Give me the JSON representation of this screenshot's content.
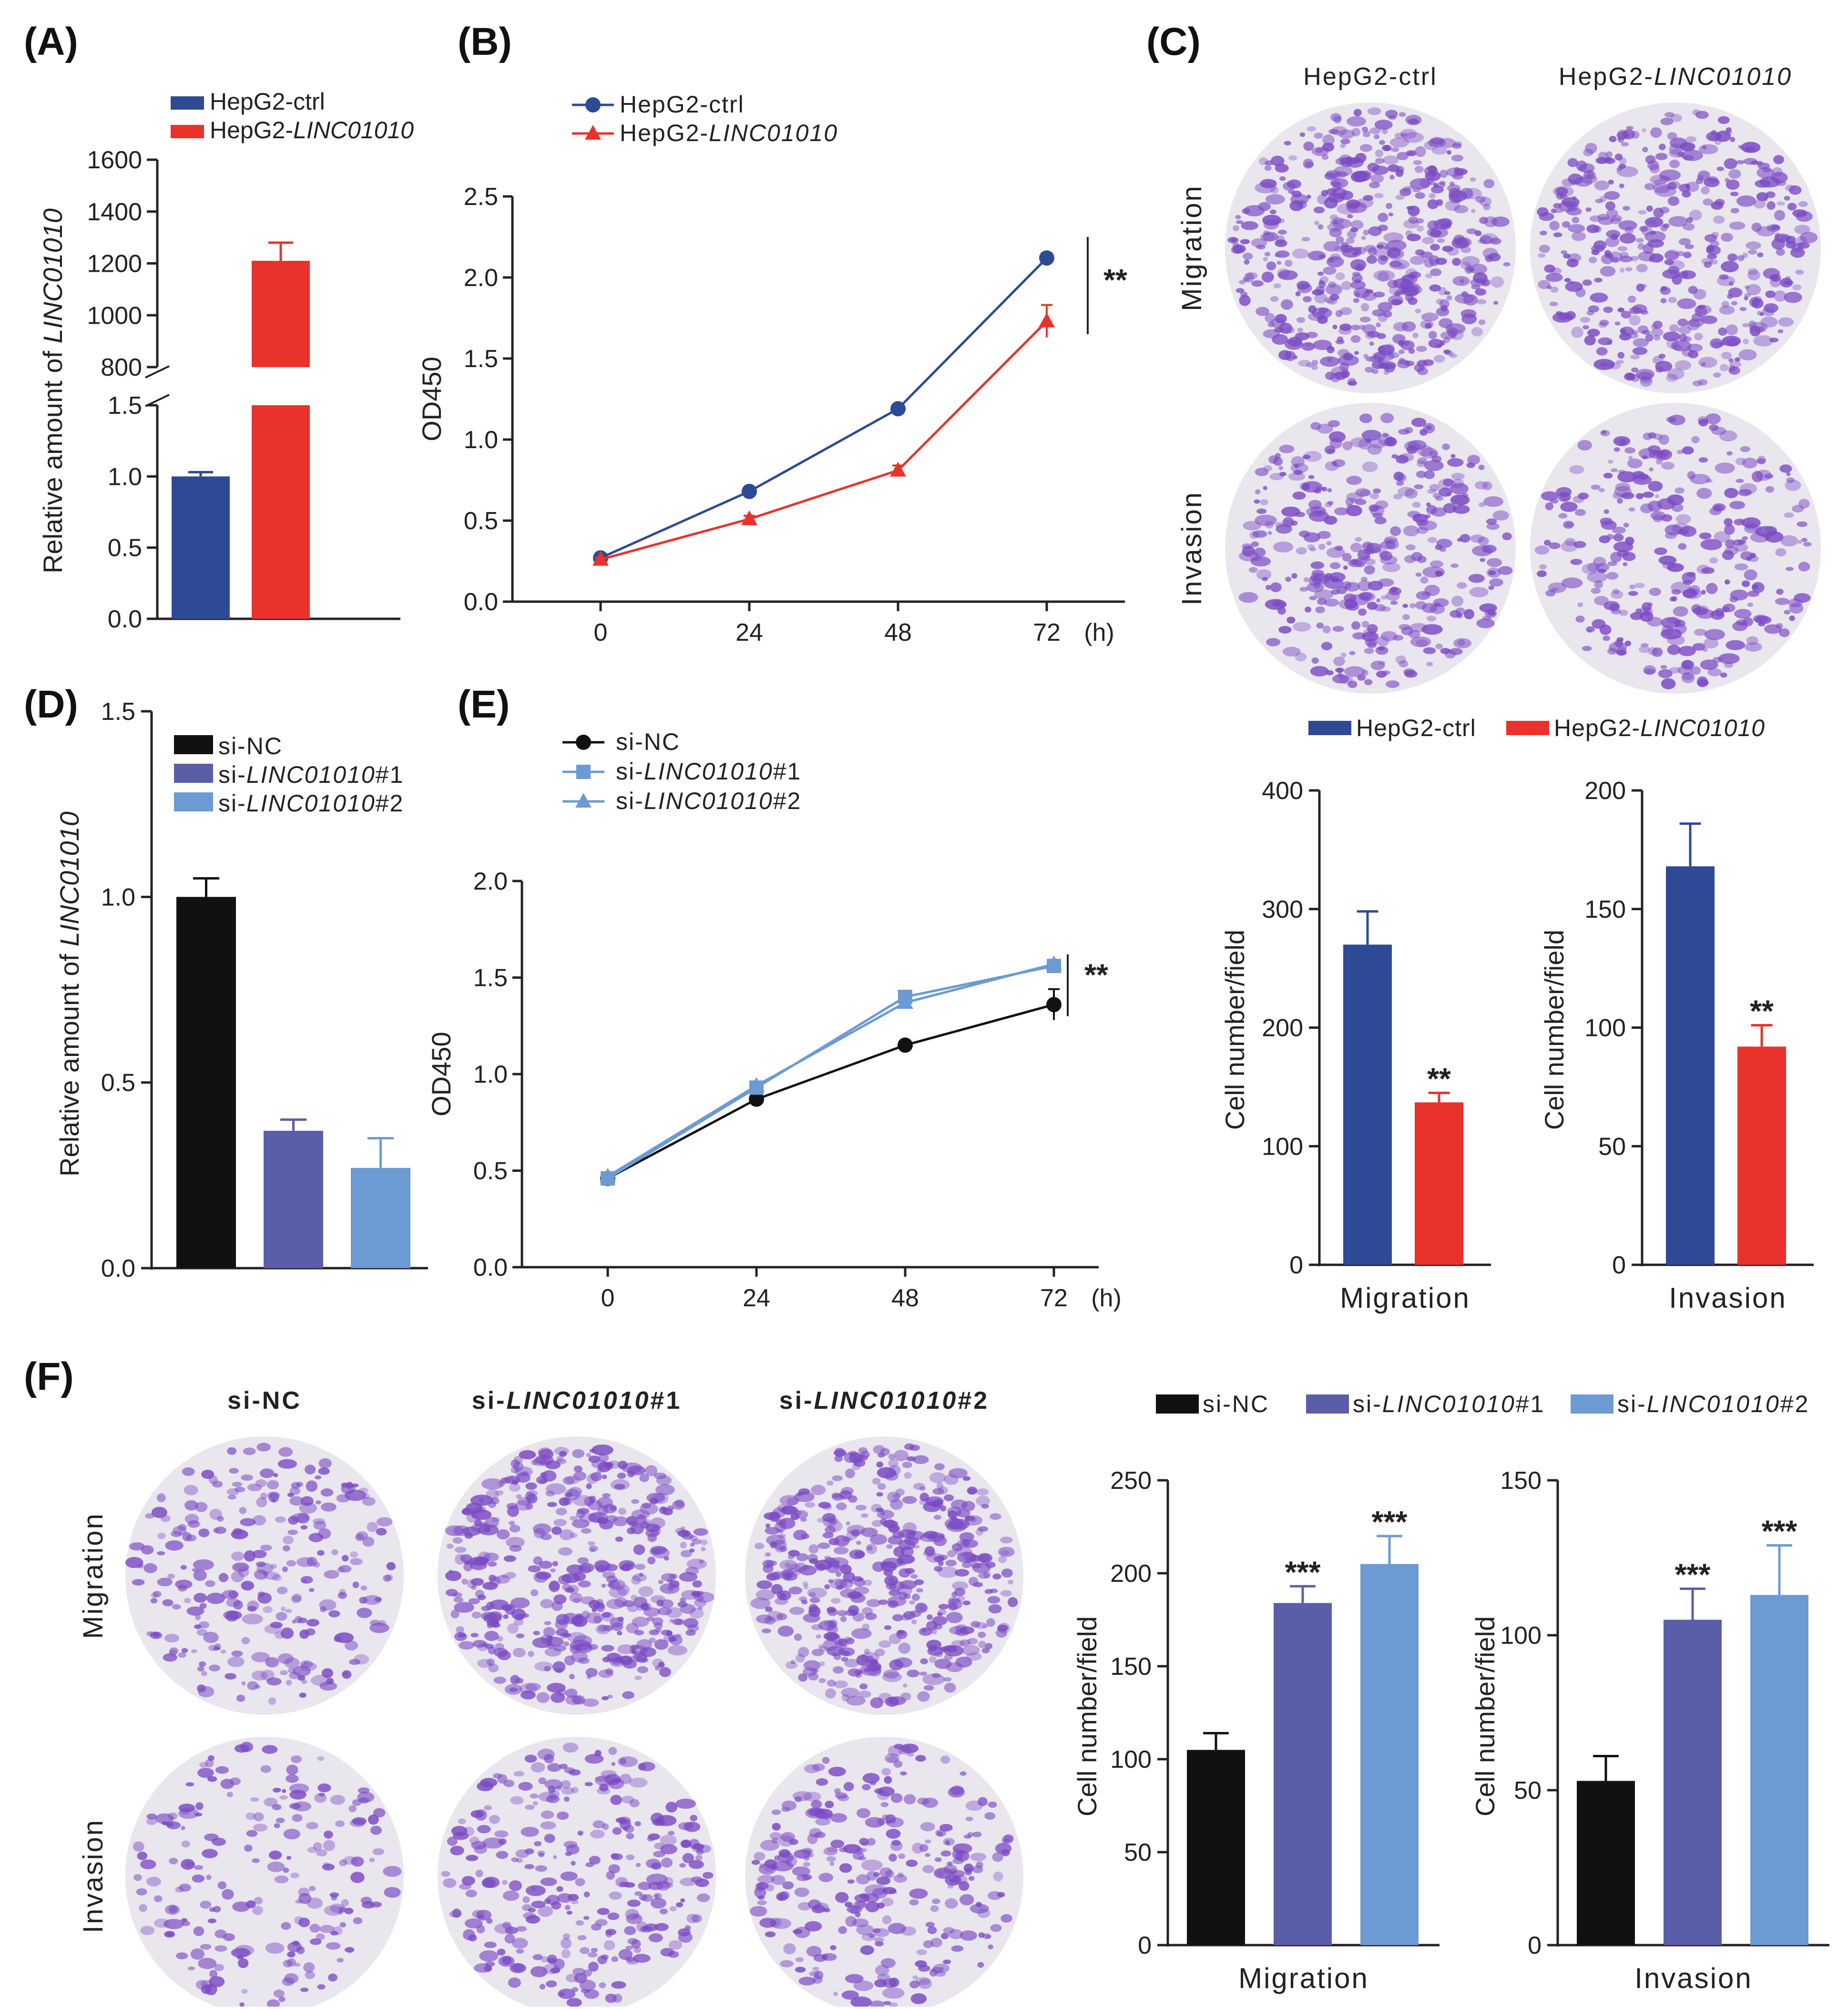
{
  "colors": {
    "navy": "#2E4A94",
    "red": "#E8322B",
    "black": "#111111",
    "purple": "#5A5EA8",
    "lightblue": "#6C9AD2",
    "axis": "#222222",
    "stain": "#7A49C4",
    "dish": "#E9E6EE"
  },
  "icons": {
    "dish": "stained-transwell-dish-icon",
    "marker_circle": "circle-marker-icon",
    "marker_triangle": "triangle-marker-icon",
    "marker_square": "square-marker-icon"
  },
  "images": {
    "C": {
      "panel": "(C)",
      "columns": [
        "HepG2-ctrl",
        "HepG2-LINC01010"
      ],
      "rows": [
        "Migration",
        "Invasion"
      ]
    },
    "F": {
      "panel": "(F)",
      "columns": [
        "si-NC",
        "si-LINC01010#1",
        "si-LINC01010#2"
      ],
      "rows": [
        "Migration",
        "Invasion"
      ]
    }
  },
  "chart_data": [
    {
      "id": "A",
      "panel": "(A)",
      "type": "bar",
      "broken_axis": true,
      "ylabel": "Relative amount of LINC01010",
      "categories": [
        "HepG2-ctrl",
        "HepG2-LINC01010"
      ],
      "values": [
        1.0,
        1210
      ],
      "errors": [
        0.03,
        70
      ],
      "legend": [
        "HepG2-ctrl",
        "HepG2-LINC01010"
      ],
      "lower_range": [
        0,
        1.5
      ],
      "upper_range": [
        800,
        1600
      ],
      "lower_ticks": [
        "0.0",
        "0.5",
        "1.0",
        "1.5"
      ],
      "upper_ticks": [
        "800",
        "1000",
        "1200",
        "1400",
        "1600"
      ]
    },
    {
      "id": "B",
      "panel": "(B)",
      "type": "line",
      "ylabel": "OD450",
      "x": [
        0,
        24,
        48,
        72
      ],
      "x_ticks": [
        "0",
        "24",
        "48",
        "72"
      ],
      "x_unit": "(h)",
      "ylim": [
        0,
        2.5
      ],
      "y_ticks": [
        "0.0",
        "0.5",
        "1.0",
        "1.5",
        "2.0",
        "2.5"
      ],
      "series": [
        {
          "name": "HepG2-ctrl",
          "values": [
            0.27,
            0.68,
            1.19,
            2.12
          ],
          "errors": [
            0.01,
            0.02,
            0.02,
            0.03
          ]
        },
        {
          "name": "HepG2-LINC01010",
          "values": [
            0.26,
            0.51,
            0.81,
            1.73
          ],
          "errors": [
            0.01,
            0.02,
            0.03,
            0.1
          ]
        }
      ],
      "significance": "**"
    },
    {
      "id": "C1",
      "type": "bar",
      "xlabel": "Migration",
      "ylabel": "Cell number/field",
      "ylim": [
        0,
        400
      ],
      "y_ticks": [
        "0",
        "100",
        "200",
        "300",
        "400"
      ],
      "categories": [
        "HepG2-ctrl",
        "HepG2-LINC01010"
      ],
      "values": [
        270,
        137
      ],
      "errors": [
        28,
        8
      ],
      "significance": [
        "",
        "**"
      ]
    },
    {
      "id": "C2",
      "type": "bar",
      "xlabel": "Invasion",
      "ylabel": "Cell number/field",
      "ylim": [
        0,
        200
      ],
      "y_ticks": [
        "0",
        "50",
        "100",
        "150",
        "200"
      ],
      "categories": [
        "HepG2-ctrl",
        "HepG2-LINC01010"
      ],
      "values": [
        168,
        92
      ],
      "errors": [
        18,
        9
      ],
      "significance": [
        "",
        "**"
      ]
    },
    {
      "id": "D",
      "panel": "(D)",
      "type": "bar",
      "ylabel": "Relative amount of LINC01010",
      "ylim": [
        0,
        1.5
      ],
      "y_ticks": [
        "0.0",
        "0.5",
        "1.0",
        "1.5"
      ],
      "categories": [
        "si-NC",
        "si-LINC01010#1",
        "si-LINC01010#2"
      ],
      "values": [
        1.0,
        0.37,
        0.27
      ],
      "errors": [
        0.05,
        0.03,
        0.08
      ]
    },
    {
      "id": "E",
      "panel": "(E)",
      "type": "line",
      "ylabel": "OD450",
      "x": [
        0,
        24,
        48,
        72
      ],
      "x_ticks": [
        "0",
        "24",
        "48",
        "72"
      ],
      "x_unit": "(h)",
      "ylim": [
        0,
        2.0
      ],
      "y_ticks": [
        "0.0",
        "0.5",
        "1.0",
        "1.5",
        "2.0"
      ],
      "series": [
        {
          "name": "si-NC",
          "values": [
            0.46,
            0.87,
            1.15,
            1.36
          ],
          "errors": [
            0.01,
            0.02,
            0.02,
            0.08
          ]
        },
        {
          "name": "si-LINC01010#1",
          "values": [
            0.46,
            0.93,
            1.4,
            1.56
          ],
          "errors": [
            0.01,
            0.02,
            0.02,
            0.03
          ]
        },
        {
          "name": "si-LINC01010#2",
          "values": [
            0.47,
            0.94,
            1.37,
            1.57
          ],
          "errors": [
            0.01,
            0.02,
            0.02,
            0.02
          ]
        }
      ],
      "significance": "**"
    },
    {
      "id": "F1",
      "type": "bar",
      "xlabel": "Migration",
      "ylabel": "Cell number/field",
      "ylim": [
        0,
        250
      ],
      "y_ticks": [
        "0",
        "50",
        "100",
        "150",
        "200",
        "250"
      ],
      "categories": [
        "si-NC",
        "si-LINC01010#1",
        "si-LINC01010#2"
      ],
      "values": [
        105,
        184,
        205
      ],
      "errors": [
        9,
        9,
        15
      ],
      "significance": [
        "",
        "***",
        "***"
      ]
    },
    {
      "id": "F2",
      "type": "bar",
      "xlabel": "Invasion",
      "ylabel": "Cell number/field",
      "ylim": [
        0,
        150
      ],
      "y_ticks": [
        "0",
        "50",
        "100",
        "150"
      ],
      "categories": [
        "si-NC",
        "si-LINC01010#1",
        "si-LINC01010#2"
      ],
      "values": [
        53,
        105,
        113
      ],
      "errors": [
        8,
        10,
        16
      ],
      "significance": [
        "",
        "***",
        "***"
      ]
    }
  ],
  "legends": {
    "C": [
      "HepG2-ctrl",
      "HepG2-LINC01010"
    ],
    "F": [
      "si-NC",
      "si-LINC01010#1",
      "si-LINC01010#2"
    ]
  }
}
